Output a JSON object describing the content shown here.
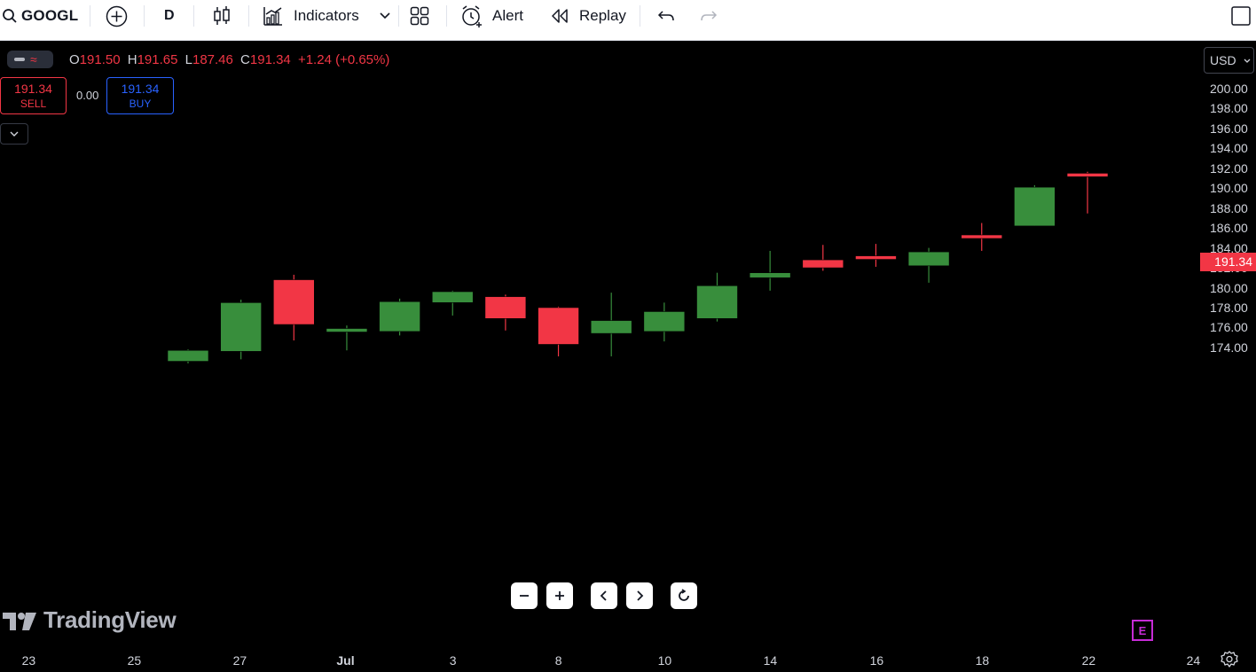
{
  "toolbar": {
    "symbol": "GOOGL",
    "interval": "D",
    "indicators_label": "Indicators",
    "alert_label": "Alert",
    "replay_label": "Replay"
  },
  "legend": {
    "open_key": "O",
    "open": "191.50",
    "high_key": "H",
    "high": "191.65",
    "low_key": "L",
    "low": "187.46",
    "close_key": "C",
    "close": "191.34",
    "change": "+1.24 (+0.65%)"
  },
  "trade": {
    "sell_price": "191.34",
    "sell_label": "SELL",
    "spread": "0.00",
    "buy_price": "191.34",
    "buy_label": "BUY"
  },
  "currency": "USD",
  "last_price": "191.34",
  "price_axis": [
    "200.00",
    "198.00",
    "196.00",
    "194.00",
    "192.00",
    "190.00",
    "188.00",
    "186.00",
    "184.00",
    "182.00",
    "180.00",
    "178.00",
    "176.00",
    "174.00"
  ],
  "date_axis": [
    "23",
    "25",
    "27",
    "Jul",
    "3",
    "8",
    "10",
    "14",
    "16",
    "18",
    "22",
    "24"
  ],
  "watermark": "TradingView",
  "earnings_badge": "E",
  "colors": {
    "up": "#388e3c",
    "down": "#f23645",
    "background": "#000000",
    "accent": "#2962ff"
  },
  "chart_data": {
    "type": "candlestick",
    "ylim": [
      172.5,
      201.5
    ],
    "x": [
      "Jun 26",
      "Jun 27",
      "Jun 28",
      "Jul 1",
      "Jul 2",
      "Jul 3",
      "Jul 5",
      "Jul 8",
      "Jul 9",
      "Jul 10",
      "Jul 11",
      "Jul 12",
      "Jul 15",
      "Jul 16",
      "Jul 17",
      "Jul 18",
      "Jul 19",
      "Jul 22"
    ],
    "open": [
      172.6,
      173.6,
      180.8,
      175.8,
      175.6,
      178.5,
      179.1,
      178.0,
      175.4,
      175.6,
      176.9,
      181.0,
      182.8,
      183.2,
      182.2,
      185.3,
      186.2,
      191.5
    ],
    "high": [
      173.8,
      178.8,
      181.3,
      176.2,
      178.9,
      179.7,
      179.3,
      178.1,
      179.5,
      178.5,
      181.5,
      183.7,
      184.3,
      184.4,
      184.0,
      186.5,
      190.3,
      191.65
    ],
    "low": [
      172.4,
      172.8,
      174.7,
      173.7,
      175.2,
      177.2,
      175.7,
      173.1,
      173.1,
      174.6,
      176.6,
      179.7,
      181.7,
      182.1,
      180.5,
      183.7,
      186.2,
      187.46
    ],
    "close": [
      173.7,
      178.5,
      176.3,
      175.9,
      178.6,
      179.6,
      176.9,
      174.3,
      176.7,
      177.6,
      180.2,
      181.5,
      182.0,
      183.0,
      183.6,
      185.0,
      190.1,
      191.34
    ]
  }
}
